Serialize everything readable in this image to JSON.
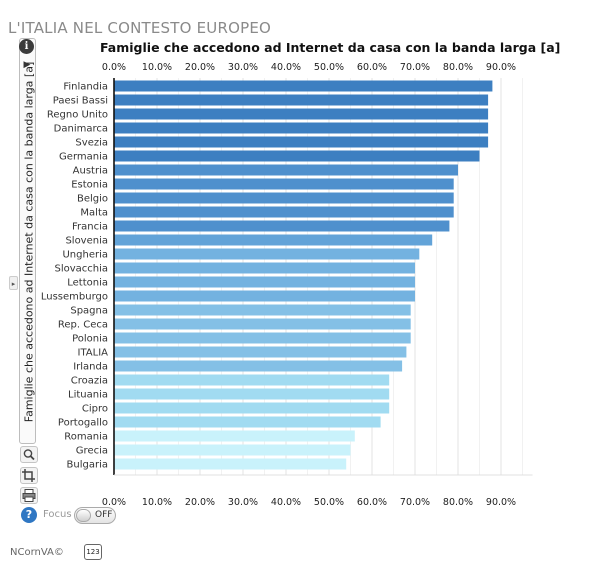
{
  "page": {
    "title": "L'ITALIA NEL CONTESTO EUROPEO",
    "brand": "NCornVA©",
    "counter_label": "123"
  },
  "sidebar": {
    "info_icon": "info-icon",
    "info_glyph": "i",
    "play_glyph": "▶",
    "collapse_glyph": "▸",
    "tab_label": "Famiglie che accedono ad Internet da casa con la banda larga [a]",
    "tools": [
      "zoom-icon",
      "crop-icon",
      "print-icon"
    ],
    "help_glyph": "?",
    "focus_label": "Focus",
    "focus_state": "OFF"
  },
  "chart_data": {
    "type": "bar",
    "orientation": "horizontal",
    "title": "Famiglie che accedono ad Internet da casa con la banda larga [a]",
    "xlim": [
      0,
      95
    ],
    "x_ticks": [
      0,
      10,
      20,
      30,
      40,
      50,
      60,
      70,
      80,
      90
    ],
    "x_tick_labels": [
      "0.0%",
      "10.0%",
      "20.0%",
      "30.0%",
      "40.0%",
      "50.0%",
      "60.0%",
      "70.0%",
      "80.0%",
      "90.0%"
    ],
    "tick_axes": [
      "top",
      "bottom"
    ],
    "grid": true,
    "categories": [
      "Finlandia",
      "Paesi Bassi",
      "Regno Unito",
      "Danimarca",
      "Svezia",
      "Germania",
      "Austria",
      "Estonia",
      "Belgio",
      "Malta",
      "Francia",
      "Slovenia",
      "Ungheria",
      "Slovacchia",
      "Lettonia",
      "Lussemburgo",
      "Spagna",
      "Rep. Ceca",
      "Polonia",
      "ITALIA",
      "Irlanda",
      "Croazia",
      "Lituania",
      "Cipro",
      "Portogallo",
      "Romania",
      "Grecia",
      "Bulgaria"
    ],
    "values": [
      88,
      87,
      87,
      87,
      87,
      85,
      80,
      79,
      79,
      79,
      78,
      74,
      71,
      70,
      70,
      70,
      69,
      69,
      69,
      68,
      67,
      64,
      64,
      64,
      62,
      56,
      55,
      54
    ],
    "colors": [
      "#3d7fc1",
      "#3d7fc1",
      "#3d7fc1",
      "#3d7fc1",
      "#3d7fc1",
      "#3d7fc1",
      "#4f90cd",
      "#4f90cd",
      "#4f90cd",
      "#4f90cd",
      "#4f90cd",
      "#62a3d8",
      "#73b2e0",
      "#73b2e0",
      "#73b2e0",
      "#73b2e0",
      "#84c0e6",
      "#84c0e6",
      "#84c0e6",
      "#84c0e6",
      "#84c0e6",
      "#a1dbf1",
      "#a1dbf1",
      "#a1dbf1",
      "#a1dbf1",
      "#c9f2fb",
      "#c9f2fb",
      "#c9f2fb"
    ]
  }
}
